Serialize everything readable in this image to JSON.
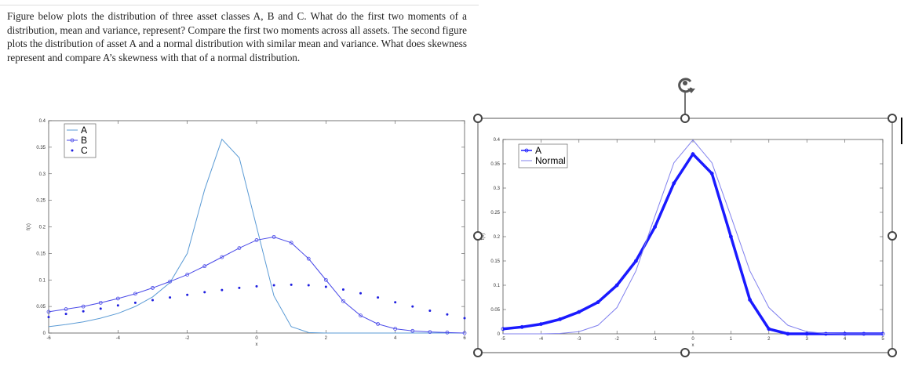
{
  "document": {
    "paragraph": "Figure below plots the distribution of three asset classes A, B and C. What do the first two moments of a distribution, mean and variance, represent? Compare the first two moments across all assets.  The second figure plots the distribution of asset A and a normal distribution with similar mean and variance. What does skewness represent and compare A’s skewness with that of a normal distribution."
  },
  "chart_data": [
    {
      "type": "line",
      "x_label": "x",
      "y_label": "f(x)",
      "x": [
        -6,
        -5.5,
        -5,
        -4.5,
        -4,
        -3.5,
        -3,
        -2.5,
        -2,
        -1.5,
        -1,
        -0.5,
        0,
        0.5,
        1,
        1.5,
        2,
        2.5,
        3,
        3.5,
        4,
        4.5,
        5,
        5.5,
        6
      ],
      "series": [
        {
          "name": "A",
          "color": "#5b9bd5",
          "style": "line",
          "width": 1,
          "values": [
            0.012,
            0.016,
            0.021,
            0.028,
            0.037,
            0.05,
            0.068,
            0.095,
            0.15,
            0.27,
            0.365,
            0.33,
            0.2,
            0.07,
            0.012,
            0.001,
            0,
            0,
            0,
            0,
            0,
            0,
            0,
            0,
            0
          ]
        },
        {
          "name": "B",
          "color": "#4a4ae8",
          "style": "line-circle",
          "width": 1,
          "values": [
            0.04,
            0.045,
            0.05,
            0.057,
            0.065,
            0.074,
            0.085,
            0.097,
            0.11,
            0.126,
            0.143,
            0.16,
            0.175,
            0.181,
            0.17,
            0.14,
            0.1,
            0.06,
            0.033,
            0.017,
            0.008,
            0.004,
            0.002,
            0.001,
            0
          ]
        },
        {
          "name": "C",
          "color": "#1f1fe0",
          "style": "dot",
          "width": 1,
          "values": [
            0.03,
            0.036,
            0.041,
            0.046,
            0.052,
            0.057,
            0.062,
            0.067,
            0.072,
            0.077,
            0.081,
            0.085,
            0.088,
            0.09,
            0.091,
            0.09,
            0.087,
            0.082,
            0.075,
            0.067,
            0.058,
            0.05,
            0.042,
            0.035,
            0.028
          ]
        }
      ],
      "xlim": [
        -6,
        6
      ],
      "xticks": [
        -6,
        -4,
        -2,
        0,
        2,
        4,
        6
      ],
      "ylim": [
        0,
        0.4
      ],
      "yticks": [
        0,
        0.05,
        0.1,
        0.15,
        0.2,
        0.25,
        0.3,
        0.35,
        0.4
      ],
      "legend": "upper-left"
    },
    {
      "type": "line",
      "x_label": "x",
      "y_label": "f(x)",
      "x": [
        -5,
        -4.5,
        -4,
        -3.5,
        -3,
        -2.5,
        -2,
        -1.5,
        -1,
        -0.5,
        0,
        0.5,
        1,
        1.5,
        2,
        2.5,
        3,
        3.5,
        4,
        4.5,
        5
      ],
      "series": [
        {
          "name": "A",
          "color": "#1a1aff",
          "style": "line-circle",
          "width": 3.5,
          "values": [
            0.01,
            0.014,
            0.02,
            0.03,
            0.045,
            0.065,
            0.1,
            0.15,
            0.22,
            0.31,
            0.37,
            0.33,
            0.2,
            0.07,
            0.01,
            0,
            0,
            0,
            0,
            0,
            0
          ]
        },
        {
          "name": "Normal",
          "color": "#8080ee",
          "style": "line",
          "width": 1,
          "values": [
            0,
            0,
            0.0001,
            0.0009,
            0.0044,
            0.0175,
            0.054,
            0.1295,
            0.242,
            0.3521,
            0.3989,
            0.3521,
            0.242,
            0.1295,
            0.054,
            0.0175,
            0.0044,
            0.0009,
            0.0001,
            0,
            0
          ]
        }
      ],
      "xlim": [
        -5,
        5
      ],
      "xticks": [
        -5,
        -4,
        -3,
        -2,
        -1,
        0,
        1,
        2,
        3,
        4,
        5
      ],
      "ylim": [
        0,
        0.4
      ],
      "yticks": [
        0,
        0.05,
        0.1,
        0.15,
        0.2,
        0.25,
        0.3,
        0.35,
        0.4
      ],
      "legend": "upper-left"
    }
  ]
}
